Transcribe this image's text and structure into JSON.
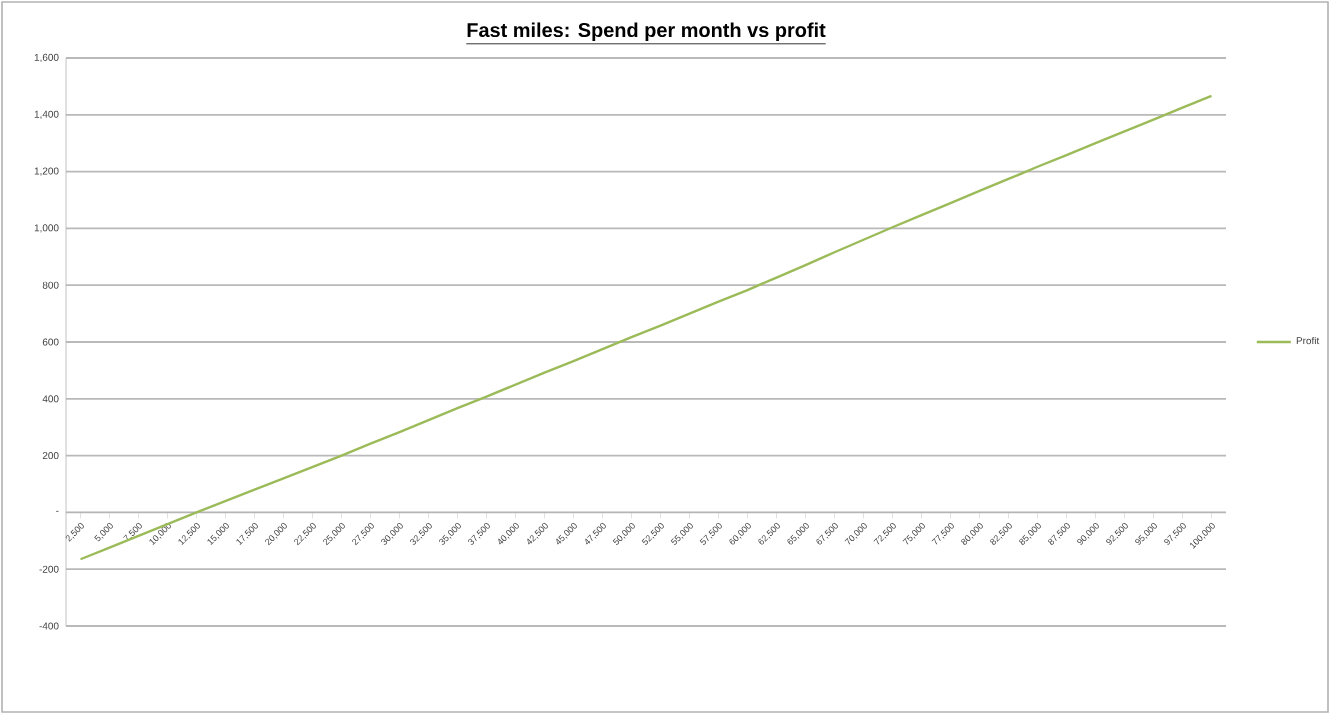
{
  "chart_data": {
    "type": "line",
    "title": "Fast miles: Spend per month vs profit",
    "categories": [
      "2,500",
      "5,000",
      "7,500",
      "10,000",
      "12,500",
      "15,000",
      "17,500",
      "20,000",
      "22,500",
      "25,000",
      "27,500",
      "30,000",
      "32,500",
      "35,000",
      "37,500",
      "40,000",
      "42,500",
      "45,000",
      "47,500",
      "50,000",
      "52,500",
      "55,000",
      "57,500",
      "60,000",
      "62,500",
      "65,000",
      "67,500",
      "70,000",
      "72,500",
      "75,000",
      "77,500",
      "80,000",
      "82,500",
      "85,000",
      "87,500",
      "90,000",
      "92,500",
      "95,000",
      "97,500",
      "100,000"
    ],
    "series": [
      {
        "name": "Profit",
        "color": "#9bbb59",
        "values": [
          -165,
          -124,
          -83,
          -41,
          0,
          40,
          80,
          120,
          160,
          200,
          242,
          283,
          325,
          367,
          408,
          450,
          492,
          533,
          575,
          617,
          658,
          700,
          742,
          783,
          827,
          871,
          916,
          960,
          1004,
          1047,
          1089,
          1132,
          1174,
          1217,
          1258,
          1300,
          1342,
          1383,
          1425,
          1467
        ]
      }
    ],
    "ylim": [
      -400,
      1600
    ],
    "yticks": [
      {
        "value": -400,
        "label": "-400"
      },
      {
        "value": -200,
        "label": "-200"
      },
      {
        "value": 0,
        "label": "-"
      },
      {
        "value": 200,
        "label": "200"
      },
      {
        "value": 400,
        "label": "400"
      },
      {
        "value": 600,
        "label": "600"
      },
      {
        "value": 800,
        "label": "800"
      },
      {
        "value": 1000,
        "label": "1,000"
      },
      {
        "value": 1200,
        "label": "1,200"
      },
      {
        "value": 1400,
        "label": "1,400"
      },
      {
        "value": 1600,
        "label": "1,600"
      }
    ],
    "grid": "y",
    "legend": "right",
    "marker": "none",
    "line_style": "solid"
  }
}
